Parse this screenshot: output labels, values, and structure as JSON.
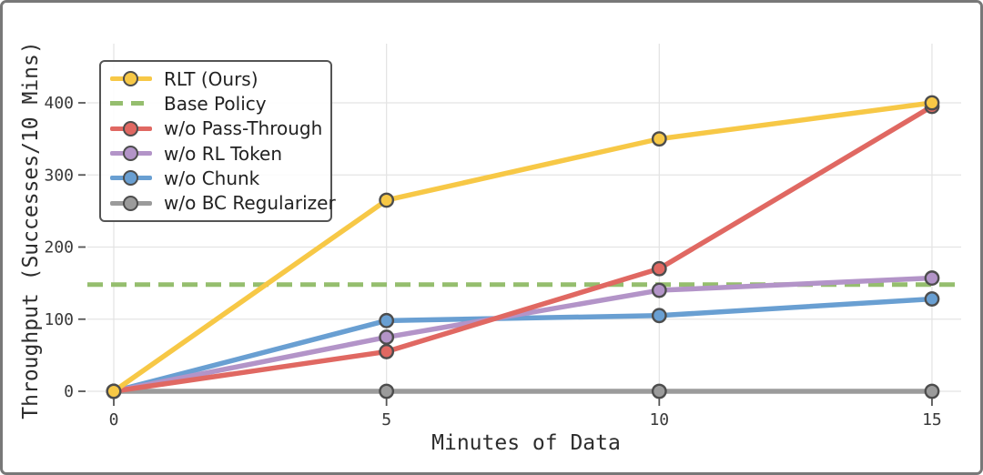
{
  "chart_data": {
    "type": "line",
    "x": [
      0,
      5,
      10,
      15
    ],
    "xticks": [
      "0",
      "5",
      "10",
      "15"
    ],
    "yticks": [
      "0",
      "100",
      "200",
      "300",
      "400"
    ],
    "ytick_values": [
      0,
      100,
      200,
      300,
      400
    ],
    "xtick_values": [
      0,
      5,
      10,
      15
    ],
    "xlabel": "Minutes of Data",
    "ylabel": "Throughput (Successes/10 Mins)",
    "xlim": [
      -0.5,
      15.6
    ],
    "ylim": [
      -8,
      482
    ],
    "grid": true,
    "legend_position": "upper-left",
    "marker_edge_color": "#4d4d4d",
    "grid_color": "#e4e4e4",
    "tick_color": "#555555",
    "tick_label_color": "#3a3a3a",
    "axis_label_color": "#2d2d2d",
    "series": [
      {
        "name": "RLT (Ours)",
        "color": "#F7C846",
        "line": "solid",
        "marker": "circle",
        "values": [
          0,
          265,
          350,
          400
        ]
      },
      {
        "name": "Base Policy",
        "color": "#95BE6E",
        "line": "dashed",
        "marker": "none",
        "values": [
          148,
          148,
          148,
          148
        ],
        "note": "horizontal reference line spanning full axis width"
      },
      {
        "name": "w/o Pass-Through",
        "color": "#E06862",
        "line": "solid",
        "marker": "circle",
        "values": [
          0,
          55,
          170,
          395
        ]
      },
      {
        "name": "w/o RL Token",
        "color": "#B394C8",
        "line": "solid",
        "marker": "circle",
        "values": [
          0,
          75,
          140,
          157
        ]
      },
      {
        "name": "w/o Chunk",
        "color": "#699FD2",
        "line": "solid",
        "marker": "circle",
        "values": [
          0,
          98,
          105,
          128
        ]
      },
      {
        "name": "w/o BC Regularizer",
        "color": "#9B9B9B",
        "line": "solid",
        "marker": "circle",
        "values": [
          0,
          0,
          0,
          0
        ]
      }
    ],
    "draw_order": [
      1,
      5,
      4,
      3,
      2,
      0
    ]
  }
}
